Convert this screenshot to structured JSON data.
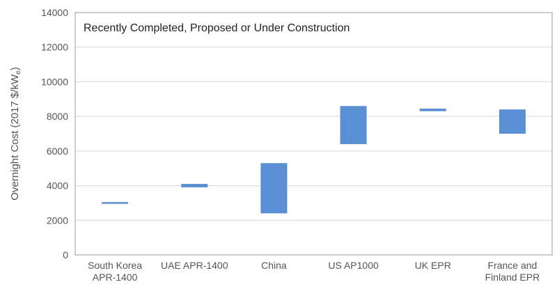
{
  "chart_data": {
    "type": "bar",
    "subtype": "floating-range",
    "title": "Recently Completed, Proposed or Under Construction",
    "ylabel_main": "Overnight Cost (2017 $/kW",
    "ylabel_sub": "e",
    "ylabel_end": ")",
    "ylim": [
      0,
      14000
    ],
    "yticks": [
      0,
      2000,
      4000,
      6000,
      8000,
      10000,
      12000,
      14000
    ],
    "grid": true,
    "categories": [
      [
        "South Korea",
        "APR-1400"
      ],
      [
        "UAE APR-1400"
      ],
      [
        "China"
      ],
      [
        "US AP1000"
      ],
      [
        "UK EPR"
      ],
      [
        "France and",
        "Finland EPR"
      ]
    ],
    "ranges": [
      [
        2950,
        3050
      ],
      [
        3900,
        4100
      ],
      [
        2400,
        5300
      ],
      [
        6400,
        8600
      ],
      [
        8300,
        8450
      ],
      [
        7000,
        8400
      ]
    ],
    "colors": {
      "bar": "#5b8fd4",
      "grid": "#d9d9d9",
      "axis": "#999999"
    }
  }
}
